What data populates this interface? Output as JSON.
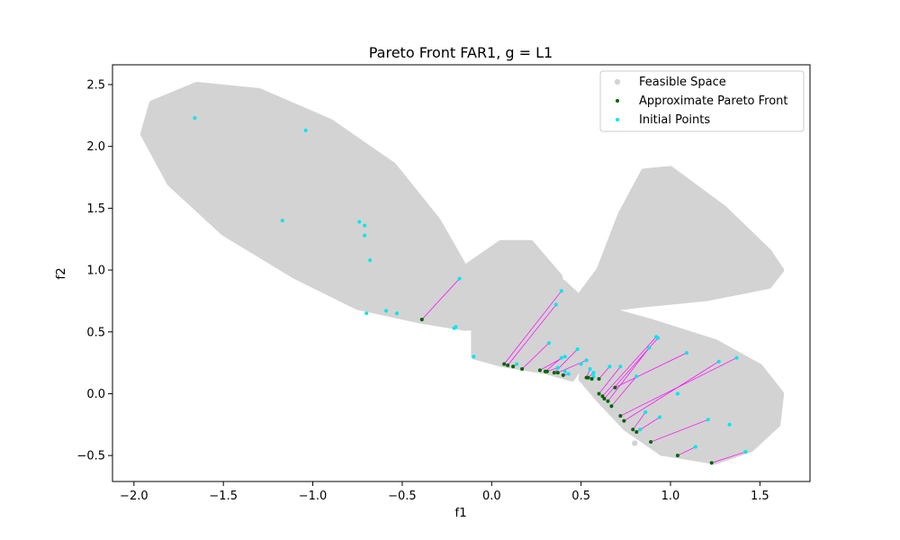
{
  "chart_data": {
    "type": "scatter",
    "title": "Pareto Front FAR1, g = L1",
    "xlabel": "f1",
    "ylabel": "f2",
    "xlim": [
      -2.12,
      1.78
    ],
    "ylim": [
      -0.71,
      2.66
    ],
    "xticks": [
      -2.0,
      -1.5,
      -1.0,
      -0.5,
      0.0,
      0.5,
      1.0,
      1.5
    ],
    "xtick_labels": [
      "−2.0",
      "−1.5",
      "−1.0",
      "−0.5",
      "0.0",
      "0.5",
      "1.0",
      "1.5"
    ],
    "yticks": [
      -0.5,
      0.0,
      0.5,
      1.0,
      1.5,
      2.0,
      2.5
    ],
    "ytick_labels": [
      "−0.5",
      "0.0",
      "0.5",
      "1.0",
      "1.5",
      "2.0",
      "2.5"
    ],
    "grid": false,
    "legend_position": "top-right",
    "colors": {
      "feasible": "#d3d3d3",
      "pareto": "#006400",
      "initial": "#00e5ee",
      "connector": "#ff00ff"
    },
    "series": [
      {
        "name": "Feasible Space",
        "region_outlines": [
          {
            "label": "left lobe",
            "points": [
              [
                -1.9,
                2.35
              ],
              [
                -1.65,
                2.5
              ],
              [
                -1.3,
                2.45
              ],
              [
                -0.9,
                2.2
              ],
              [
                -0.55,
                1.85
              ],
              [
                -0.3,
                1.4
              ],
              [
                -0.15,
                1.02
              ],
              [
                0.05,
                1.22
              ],
              [
                0.22,
                1.22
              ],
              [
                0.38,
                0.95
              ],
              [
                0.42,
                0.7
              ],
              [
                0.3,
                0.58
              ],
              [
                -0.15,
                0.53
              ],
              [
                -0.4,
                0.59
              ],
              [
                -0.75,
                0.7
              ],
              [
                -1.1,
                0.95
              ],
              [
                -1.5,
                1.3
              ],
              [
                -1.8,
                1.7
              ],
              [
                -1.95,
                2.1
              ]
            ]
          },
          {
            "label": "center body",
            "points": [
              [
                -0.1,
                0.55
              ],
              [
                0.2,
                0.85
              ],
              [
                0.4,
                0.9
              ],
              [
                0.55,
                0.7
              ],
              [
                0.65,
                0.68
              ],
              [
                0.55,
                0.35
              ],
              [
                0.45,
                0.12
              ],
              [
                0.3,
                0.18
              ],
              [
                0.05,
                0.24
              ],
              [
                -0.1,
                0.3
              ]
            ]
          },
          {
            "label": "upper right lobe",
            "points": [
              [
                0.42,
                0.65
              ],
              [
                0.6,
                1.0
              ],
              [
                0.72,
                1.45
              ],
              [
                0.85,
                1.8
              ],
              [
                1.0,
                1.82
              ],
              [
                1.3,
                1.5
              ],
              [
                1.55,
                1.15
              ],
              [
                1.62,
                1.0
              ],
              [
                1.55,
                0.87
              ],
              [
                1.2,
                0.77
              ],
              [
                0.85,
                0.72
              ],
              [
                0.62,
                0.68
              ]
            ]
          },
          {
            "label": "lower right lobe",
            "points": [
              [
                0.55,
                0.72
              ],
              [
                0.9,
                0.58
              ],
              [
                1.25,
                0.42
              ],
              [
                1.5,
                0.22
              ],
              [
                1.62,
                0.0
              ],
              [
                1.6,
                -0.25
              ],
              [
                1.45,
                -0.45
              ],
              [
                1.25,
                -0.55
              ],
              [
                0.95,
                -0.48
              ],
              [
                0.75,
                -0.28
              ],
              [
                0.6,
                -0.05
              ],
              [
                0.5,
                0.12
              ]
            ]
          }
        ],
        "values": [
          [
            -1.85,
            2.2
          ],
          [
            -1.55,
            2.15
          ],
          [
            -1.3,
            2.25
          ],
          [
            -1.1,
            1.9
          ],
          [
            -0.85,
            1.7
          ],
          [
            -0.6,
            1.3
          ],
          [
            -0.35,
            0.95
          ],
          [
            0.2,
            0.95
          ],
          [
            0.3,
            0.55
          ],
          [
            0.9,
            1.3
          ],
          [
            1.3,
            1.0
          ],
          [
            1.0,
            0.2
          ],
          [
            1.4,
            -0.2
          ],
          [
            0.8,
            -0.4
          ]
        ]
      },
      {
        "name": "Approximate Pareto Front",
        "values": [
          [
            -0.39,
            0.6
          ],
          [
            0.07,
            0.24
          ],
          [
            0.09,
            0.23
          ],
          [
            0.12,
            0.22
          ],
          [
            0.17,
            0.2
          ],
          [
            0.27,
            0.19
          ],
          [
            0.3,
            0.18
          ],
          [
            0.31,
            0.18
          ],
          [
            0.35,
            0.17
          ],
          [
            0.37,
            0.17
          ],
          [
            0.4,
            0.15
          ],
          [
            0.53,
            0.13
          ],
          [
            0.54,
            0.13
          ],
          [
            0.56,
            0.12
          ],
          [
            0.6,
            0.12
          ],
          [
            0.6,
            0.0
          ],
          [
            0.62,
            -0.02
          ],
          [
            0.63,
            -0.04
          ],
          [
            0.65,
            -0.06
          ],
          [
            0.67,
            -0.1
          ],
          [
            0.69,
            0.05
          ],
          [
            0.72,
            -0.18
          ],
          [
            0.74,
            -0.22
          ],
          [
            0.79,
            -0.29
          ],
          [
            0.81,
            -0.31
          ],
          [
            0.89,
            -0.39
          ],
          [
            1.04,
            -0.5
          ],
          [
            1.23,
            -0.56
          ]
        ]
      },
      {
        "name": "Initial Points",
        "values": [
          [
            -1.66,
            2.23
          ],
          [
            -1.04,
            2.13
          ],
          [
            -1.17,
            1.4
          ],
          [
            -0.74,
            1.39
          ],
          [
            -0.71,
            1.36
          ],
          [
            -0.71,
            1.28
          ],
          [
            -0.68,
            1.08
          ],
          [
            -0.7,
            0.65
          ],
          [
            -0.59,
            0.67
          ],
          [
            -0.53,
            0.65
          ],
          [
            -0.21,
            0.53
          ],
          [
            -0.2,
            0.54
          ],
          [
            -0.1,
            0.3
          ],
          [
            -0.18,
            0.93
          ],
          [
            0.36,
            0.72
          ],
          [
            0.39,
            0.83
          ],
          [
            0.14,
            0.24
          ],
          [
            0.32,
            0.41
          ],
          [
            0.37,
            0.21
          ],
          [
            0.39,
            0.29
          ],
          [
            0.41,
            0.3
          ],
          [
            0.41,
            0.18
          ],
          [
            0.43,
            0.16
          ],
          [
            0.48,
            0.36
          ],
          [
            0.5,
            0.24
          ],
          [
            0.53,
            0.27
          ],
          [
            0.55,
            0.2
          ],
          [
            0.57,
            0.17
          ],
          [
            0.57,
            0.14
          ],
          [
            0.66,
            0.22
          ],
          [
            0.72,
            0.22
          ],
          [
            0.81,
            0.14
          ],
          [
            0.88,
            0.37
          ],
          [
            0.92,
            0.46
          ],
          [
            0.93,
            0.45
          ],
          [
            1.09,
            0.33
          ],
          [
            1.27,
            0.26
          ],
          [
            1.37,
            0.29
          ],
          [
            0.86,
            -0.15
          ],
          [
            0.94,
            -0.19
          ],
          [
            0.83,
            -0.29
          ],
          [
            1.04,
            0.0
          ],
          [
            1.21,
            -0.21
          ],
          [
            1.33,
            -0.25
          ],
          [
            1.14,
            -0.43
          ],
          [
            1.42,
            -0.47
          ]
        ]
      }
    ],
    "connectors": [
      [
        [
          -0.39,
          0.6
        ],
        [
          -0.18,
          0.93
        ]
      ],
      [
        [
          0.07,
          0.24
        ],
        [
          0.39,
          0.83
        ]
      ],
      [
        [
          0.09,
          0.23
        ],
        [
          0.36,
          0.72
        ]
      ],
      [
        [
          0.12,
          0.22
        ],
        [
          0.14,
          0.24
        ]
      ],
      [
        [
          0.17,
          0.2
        ],
        [
          0.32,
          0.41
        ]
      ],
      [
        [
          0.27,
          0.19
        ],
        [
          0.41,
          0.3
        ]
      ],
      [
        [
          0.3,
          0.18
        ],
        [
          0.39,
          0.29
        ]
      ],
      [
        [
          0.31,
          0.18
        ],
        [
          0.37,
          0.21
        ]
      ],
      [
        [
          0.35,
          0.17
        ],
        [
          0.48,
          0.36
        ]
      ],
      [
        [
          0.37,
          0.17
        ],
        [
          0.53,
          0.27
        ]
      ],
      [
        [
          0.4,
          0.15
        ],
        [
          0.43,
          0.16
        ]
      ],
      [
        [
          0.53,
          0.13
        ],
        [
          0.55,
          0.2
        ]
      ],
      [
        [
          0.54,
          0.13
        ],
        [
          0.57,
          0.17
        ]
      ],
      [
        [
          0.56,
          0.12
        ],
        [
          0.57,
          0.14
        ]
      ],
      [
        [
          0.6,
          0.12
        ],
        [
          0.66,
          0.22
        ]
      ],
      [
        [
          0.6,
          0.0
        ],
        [
          0.72,
          0.22
        ]
      ],
      [
        [
          0.62,
          -0.02
        ],
        [
          0.92,
          0.46
        ]
      ],
      [
        [
          0.63,
          -0.04
        ],
        [
          0.93,
          0.45
        ]
      ],
      [
        [
          0.65,
          -0.06
        ],
        [
          0.88,
          0.37
        ]
      ],
      [
        [
          0.67,
          -0.1
        ],
        [
          0.81,
          0.14
        ]
      ],
      [
        [
          0.69,
          0.05
        ],
        [
          1.09,
          0.33
        ]
      ],
      [
        [
          0.72,
          -0.18
        ],
        [
          1.37,
          0.29
        ]
      ],
      [
        [
          0.74,
          -0.22
        ],
        [
          1.27,
          0.26
        ]
      ],
      [
        [
          0.79,
          -0.29
        ],
        [
          0.86,
          -0.15
        ]
      ],
      [
        [
          0.81,
          -0.31
        ],
        [
          0.94,
          -0.19
        ]
      ],
      [
        [
          0.89,
          -0.39
        ],
        [
          1.21,
          -0.21
        ]
      ],
      [
        [
          1.04,
          -0.5
        ],
        [
          1.14,
          -0.43
        ]
      ],
      [
        [
          1.23,
          -0.56
        ],
        [
          1.42,
          -0.47
        ]
      ]
    ]
  }
}
